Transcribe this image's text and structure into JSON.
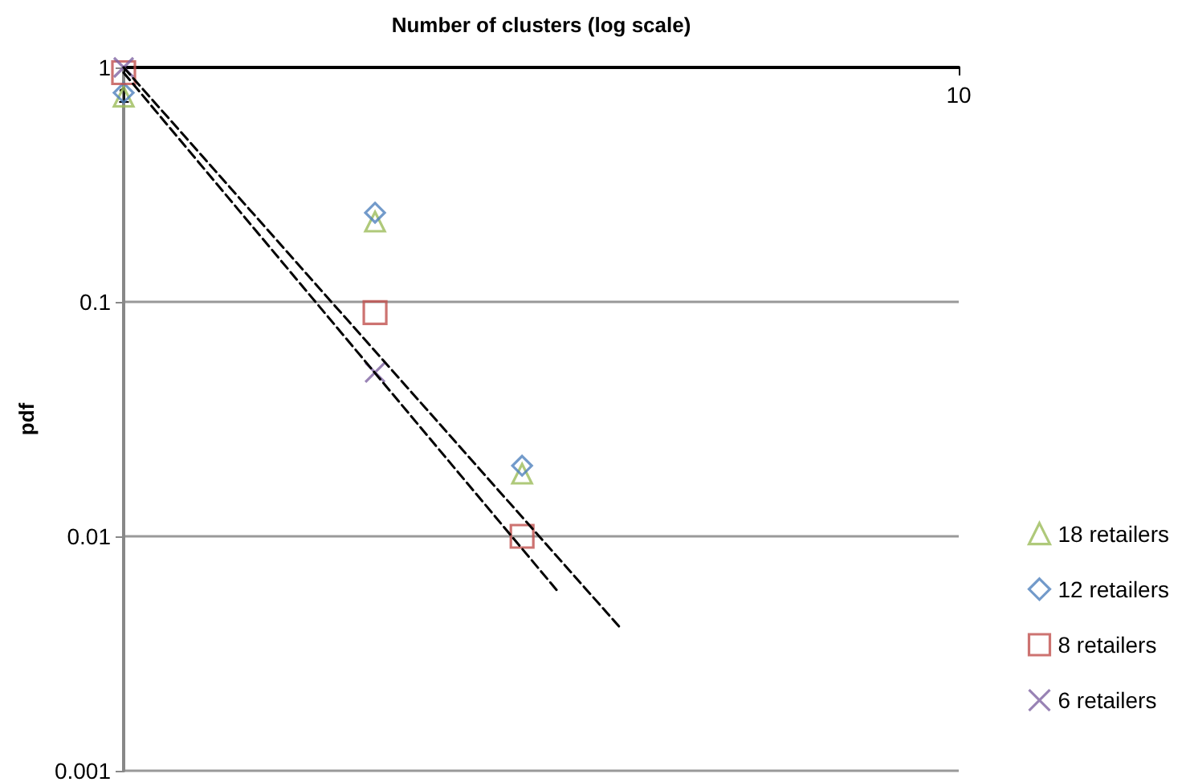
{
  "chart_data": {
    "type": "scatter",
    "xlabel": "Number of clusters (log scale)",
    "ylabel": "pdf",
    "log": "xy",
    "xlim": [
      1,
      10
    ],
    "xticks": [
      1,
      10
    ],
    "ylim": [
      0.001,
      1
    ],
    "yticks": [
      0.001,
      0.01,
      0.1,
      1
    ],
    "grid": "y",
    "legend": "right",
    "series": [
      {
        "name": "18 retailers",
        "color": "#9bbb59",
        "marker": "triangle",
        "x": [
          1,
          2,
          3
        ],
        "values": [
          0.75,
          0.22,
          0.0185
        ]
      },
      {
        "name": "12 retailers",
        "color": "#4f81bd",
        "marker": "diamond",
        "x": [
          1,
          2,
          3
        ],
        "values": [
          0.78,
          0.24,
          0.02
        ]
      },
      {
        "name": "8 retailers",
        "color": "#c0504d",
        "marker": "square",
        "x": [
          1,
          2,
          3
        ],
        "values": [
          0.95,
          0.09,
          0.01
        ]
      },
      {
        "name": "6 retailers",
        "color": "#8064a2",
        "marker": "cross",
        "x": [
          1,
          2
        ],
        "values": [
          1,
          0.05
        ]
      },
      {
        "type": "line",
        "color": "#000000",
        "line_style": "dashed",
        "marker": "none",
        "x": [
          1,
          3.95
        ],
        "values": [
          1,
          0.004
        ]
      },
      {
        "type": "line",
        "color": "#000000",
        "line_style": "dashed",
        "marker": "none",
        "x": [
          1,
          3.3
        ],
        "values": [
          0.95,
          0.0059
        ]
      }
    ]
  }
}
